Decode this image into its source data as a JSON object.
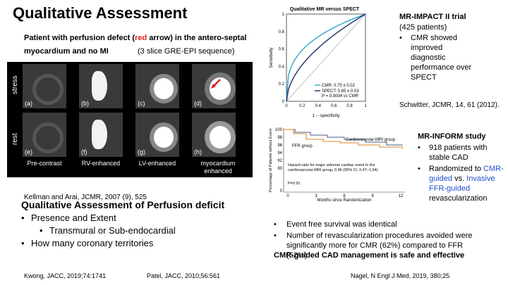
{
  "slide": {
    "title": "Qualitative Assessment",
    "subtitle_pre": "Patient with perfusion defect (",
    "subtitle_red": "red",
    "subtitle_post": " arrow) in the antero-septal",
    "subtitle_line2": "myocardium and no MI",
    "sequence_note": "(3 slice GRE-EPI sequence)"
  },
  "mri_figure": {
    "row_labels": [
      "stress",
      "rest"
    ],
    "panel_labels": [
      "(a)",
      "(b)",
      "(c)",
      "(d)",
      "(e)",
      "(f)",
      "(g)",
      "(h)"
    ],
    "column_labels": [
      "Pre-contrast",
      "RV-enhanced",
      "LV-enhanced",
      "myocardium enhanced"
    ],
    "citation": "Kellman and Arai, JCMR, 2007 (9), 525"
  },
  "perfusion": {
    "heading": "Qualitative Assessment of Perfusion deficit",
    "bullets": [
      "Presence and Extent",
      "Transmural or Sub-endocardial",
      "How many coronary territories"
    ]
  },
  "footer": {
    "ref1": "Kwong, JACC, 2019;74:1741",
    "ref2": "Patel, JACC, 2010;56:561",
    "ref3": "Nagel, N Engl J Med, 2019, 380;25"
  },
  "roc_chart": {
    "title": "Qualitative MR versus SPECT",
    "xlabel": "1 – specificity",
    "ylabel": "Sensitivity",
    "x_ticks": [
      "0",
      "0.2",
      "0.4",
      "0.6",
      "0.8",
      "1"
    ],
    "y_ticks": [
      "0",
      "0.2",
      "0.4",
      "0.6",
      "0.8",
      "1"
    ],
    "legend": [
      "CMR: 0.75 ± 0.02",
      "SPECT: 0.65 ± 0.03",
      "P = 0.0004 vs CMR"
    ],
    "colors": {
      "cmr": "#2aa7c9",
      "spect": "#1a2e6b"
    }
  },
  "impact": {
    "heading": "MR-IMPACT II trial",
    "patients": "(425 patients)",
    "bullet": "CMR showed improved diagnostic performance over SPECT",
    "citation": "Schwitter, JCMR, 14, 61 (2012)."
  },
  "km_chart": {
    "ylabel": "Percentage of Patients without Event",
    "xlabel": "Months since Randomization",
    "y_ticks": [
      "100",
      "98",
      "96",
      "94",
      "92",
      "90",
      "0"
    ],
    "x_ticks": [
      "0",
      "3",
      "6",
      "9",
      "12"
    ],
    "series_labels": [
      "Cardiovascular-MRI group",
      "FFR group"
    ],
    "hazard_text": "Hazard ratio for major adverse cardiac event in the cardiovascular-MRI group, 0.96 (95% CI, 0.47–1.94)",
    "p_value": "P=0.91",
    "colors": {
      "mri": "#4a5d8a",
      "ffr": "#d98a2b"
    }
  },
  "inform": {
    "heading": "MR-INFORM study",
    "bullet1": "918 patients with stable CAD",
    "bullet2_pre": "Randomized to ",
    "bullet2_blue1": "CMR-guided",
    "bullet2_mid": " vs. ",
    "bullet2_blue2": "Invasive FFR-guided",
    "bullet2_post": " revascularization"
  },
  "results": {
    "bullet1": "Event free survival was identical",
    "bullet2": "Number of revascularization procedures avoided were significantly more for CMR (62%) compared to FFR (52%)",
    "conclusion": "CMR-guided CAD management is safe and effective"
  }
}
